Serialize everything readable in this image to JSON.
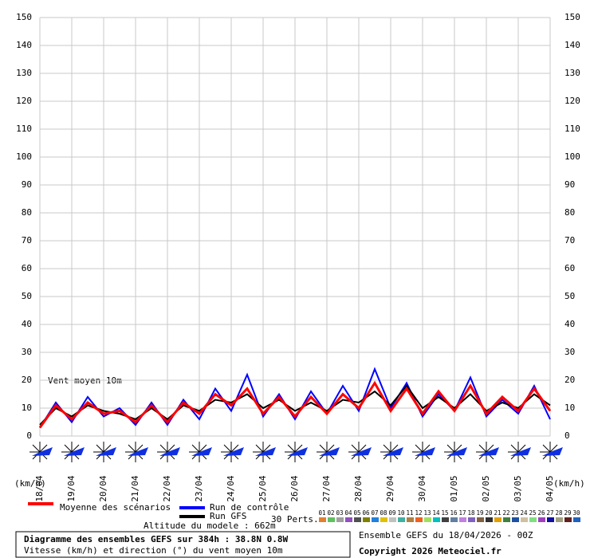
{
  "chart_data": {
    "type": "line",
    "annotation": "Vent moyen 10m",
    "y_unit_label": "(km/h)",
    "x": [
      0,
      12,
      24,
      36,
      48,
      60,
      72,
      84,
      96,
      108,
      120,
      132,
      144,
      156,
      168,
      180,
      192,
      204,
      216,
      228,
      240,
      252,
      264,
      276,
      288,
      300,
      312,
      324,
      336,
      348,
      360,
      372,
      384
    ],
    "xlim": [
      0,
      384
    ],
    "xticks": [
      {
        "value": 0,
        "label": "18/04"
      },
      {
        "value": 24,
        "label": "19/04"
      },
      {
        "value": 48,
        "label": "20/04"
      },
      {
        "value": 72,
        "label": "21/04"
      },
      {
        "value": 96,
        "label": "22/04"
      },
      {
        "value": 120,
        "label": "23/04"
      },
      {
        "value": 144,
        "label": "24/04"
      },
      {
        "value": 168,
        "label": "25/04"
      },
      {
        "value": 192,
        "label": "26/04"
      },
      {
        "value": 216,
        "label": "27/04"
      },
      {
        "value": 240,
        "label": "28/04"
      },
      {
        "value": 264,
        "label": "29/04"
      },
      {
        "value": 288,
        "label": "30/04"
      },
      {
        "value": 312,
        "label": "01/05"
      },
      {
        "value": 336,
        "label": "02/05"
      },
      {
        "value": 360,
        "label": "03/05"
      },
      {
        "value": 384,
        "label": "04/05"
      }
    ],
    "ylim": [
      0,
      150
    ],
    "yticks": [
      0,
      10,
      20,
      30,
      40,
      50,
      60,
      70,
      80,
      90,
      100,
      110,
      120,
      130,
      140,
      150
    ],
    "grid": true,
    "series": [
      {
        "name": "Run de contrôle",
        "color": "#0000ff",
        "width": 2,
        "values": [
          3,
          12,
          5,
          14,
          7,
          10,
          4,
          12,
          4,
          13,
          6,
          17,
          9,
          22,
          7,
          15,
          6,
          16,
          8,
          18,
          9,
          24,
          10,
          19,
          7,
          15,
          9,
          21,
          7,
          13,
          8,
          18,
          6
        ]
      },
      {
        "name": "Run GFS",
        "color": "#000000",
        "width": 2,
        "values": [
          4,
          10,
          7,
          11,
          9,
          8,
          6,
          10,
          6,
          11,
          9,
          13,
          12,
          15,
          10,
          13,
          9,
          12,
          9,
          13,
          12,
          16,
          11,
          18,
          10,
          14,
          10,
          15,
          9,
          12,
          10,
          15,
          11
        ]
      },
      {
        "name": "Moyenne des scénarios",
        "color": "#ff0000",
        "width": 3,
        "values": [
          3,
          11,
          6,
          12,
          8,
          9,
          5,
          11,
          5,
          12,
          8,
          15,
          11,
          17,
          8,
          14,
          7,
          14,
          8,
          15,
          10,
          19,
          9,
          17,
          8,
          16,
          9,
          18,
          8,
          14,
          9,
          17,
          9
        ]
      }
    ],
    "altitude": "Altitude du modele : 662m",
    "members_label": "30 Perts.",
    "members": [
      {
        "name": "01",
        "color": "#e08030"
      },
      {
        "name": "02",
        "color": "#60c060"
      },
      {
        "name": "03",
        "color": "#a0a0a0"
      },
      {
        "name": "04",
        "color": "#9050c0"
      },
      {
        "name": "05",
        "color": "#505050"
      },
      {
        "name": "06",
        "color": "#808000"
      },
      {
        "name": "07",
        "color": "#2080e0"
      },
      {
        "name": "08",
        "color": "#e0c000"
      },
      {
        "name": "09",
        "color": "#c0c0c0"
      },
      {
        "name": "10",
        "color": "#40b0a0"
      },
      {
        "name": "11",
        "color": "#b08040"
      },
      {
        "name": "12",
        "color": "#f06020"
      },
      {
        "name": "13",
        "color": "#a0e060"
      },
      {
        "name": "14",
        "color": "#00c0c0"
      },
      {
        "name": "15",
        "color": "#404040"
      },
      {
        "name": "16",
        "color": "#6080a0"
      },
      {
        "name": "17",
        "color": "#c080e0"
      },
      {
        "name": "18",
        "color": "#8060c0"
      },
      {
        "name": "19",
        "color": "#806040"
      },
      {
        "name": "20",
        "color": "#303030"
      },
      {
        "name": "21",
        "color": "#e0a000"
      },
      {
        "name": "22",
        "color": "#408040"
      },
      {
        "name": "23",
        "color": "#2050a0"
      },
      {
        "name": "24",
        "color": "#d0c0a0"
      },
      {
        "name": "25",
        "color": "#80e080"
      },
      {
        "name": "26",
        "color": "#a040c0"
      },
      {
        "name": "27",
        "color": "#1010a0"
      },
      {
        "name": "28",
        "color": "#a0a080"
      },
      {
        "name": "29",
        "color": "#602020"
      },
      {
        "name": "30",
        "color": "#2060c0"
      }
    ],
    "footer_title": "Diagramme des ensembles GEFS sur 384h : 38.8N 0.8W",
    "footer_subtitle": "Vitesse (km/h) et direction (°) du vent moyen 10m",
    "run_info": "Ensemble GEFS du 18/04/2026 - 00Z",
    "copyright": "Copyright 2026 Meteociel.fr"
  }
}
